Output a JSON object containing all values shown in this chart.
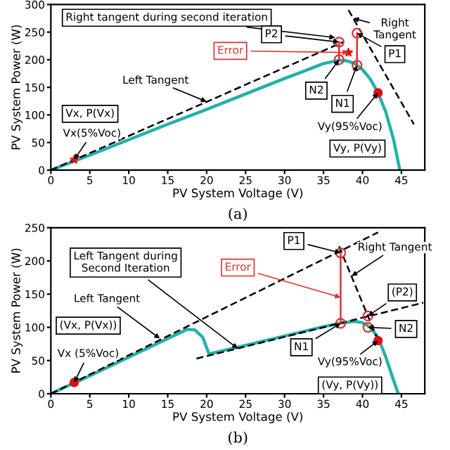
{
  "chart_data": [
    {
      "type": "line",
      "xlabel": "PV System Voltage (V)",
      "ylabel": "PV System Power (W)",
      "xlim": [
        0,
        48
      ],
      "ylim": [
        0,
        300
      ],
      "xticks": [
        0,
        5,
        10,
        15,
        20,
        25,
        30,
        35,
        40,
        45
      ],
      "yticks": [
        0,
        50,
        100,
        150,
        200,
        250,
        300
      ],
      "legend": false,
      "grid": false,
      "series": [
        {
          "type": "line",
          "color": "#20b2aa",
          "line_style": "solid",
          "x": [
            0,
            5,
            10,
            15,
            20,
            25,
            30,
            33,
            35,
            37,
            38,
            39,
            40,
            41,
            42,
            43,
            44,
            44.8
          ],
          "values": [
            0,
            27,
            55,
            83,
            110,
            138,
            166,
            182,
            193,
            199,
            198,
            193,
            182,
            165,
            140,
            105,
            55,
            0
          ]
        },
        {
          "type": "line",
          "color": "#000000",
          "line_style": "dashed",
          "x": [
            0,
            37.5
          ],
          "values": [
            0,
            232
          ]
        },
        {
          "type": "line",
          "color": "#000000",
          "line_style": "dashed",
          "x": [
            38.2,
            46.6
          ],
          "values": [
            290,
            83
          ]
        },
        {
          "type": "line",
          "color": "#e03030",
          "line_style": "solid",
          "x": [
            37,
            37
          ],
          "values": [
            232,
            200
          ]
        },
        {
          "type": "line",
          "color": "#e03030",
          "line_style": "solid",
          "x": [
            39.3,
            39.3
          ],
          "values": [
            248,
            190
          ]
        },
        {
          "type": "scatter",
          "color": "#e03030",
          "marker": "circle",
          "x": [
            37,
            39.3,
            37,
            39.3
          ],
          "values": [
            232,
            248,
            200,
            190
          ]
        },
        {
          "type": "scatter",
          "color": "#e01010",
          "marker": "star",
          "x": [
            3,
            38.2
          ],
          "values": [
            19,
            213
          ]
        },
        {
          "type": "scatter",
          "color": "#e01010",
          "marker": "circle",
          "x": [
            42
          ],
          "values": [
            140
          ]
        }
      ],
      "annotations": [
        {
          "text": "Right tangent during second iteration",
          "x": 36.5,
          "y": 240
        },
        {
          "text": "P2",
          "x": 37,
          "y": 232
        },
        {
          "text": "Right\nTangent",
          "x": 38.8,
          "y": 275
        },
        {
          "text": "P1",
          "x": 39.3,
          "y": 248
        },
        {
          "text": "Error",
          "x": 38.2,
          "y": 213
        },
        {
          "text": "N2",
          "x": 37,
          "y": 200
        },
        {
          "text": "N1",
          "x": 39.3,
          "y": 190
        },
        {
          "text": "Left Tangent",
          "x": 20,
          "y": 124
        },
        "Vx, P(Vx)",
        {
          "text": "Vx(5%Voc)",
          "x": 3,
          "y": 19
        },
        {
          "text": "Vy(95%Voc)",
          "x": 42,
          "y": 140
        },
        "Vy, P(Vy)",
        "(a)"
      ]
    },
    {
      "type": "line",
      "xlabel": "PV System Voltage (V)",
      "ylabel": "PV System Power (W)",
      "xlim": [
        0,
        48
      ],
      "ylim": [
        0,
        250
      ],
      "xticks": [
        0,
        5,
        10,
        15,
        20,
        25,
        30,
        35,
        40,
        45
      ],
      "yticks": [
        0,
        50,
        100,
        150,
        200,
        250
      ],
      "legend": false,
      "grid": false,
      "series": [
        {
          "type": "line",
          "color": "#20b2aa",
          "line_style": "solid",
          "x": [
            0,
            5,
            10,
            15,
            17.5,
            18.5,
            19.5,
            20.3,
            25,
            30,
            35,
            37,
            39,
            40,
            41,
            42,
            43,
            44,
            44.6
          ],
          "values": [
            0,
            27,
            55,
            83,
            97,
            96,
            85,
            60,
            73,
            87,
            101,
            106,
            109,
            107,
            100,
            85,
            55,
            20,
            0
          ]
        },
        {
          "type": "line",
          "color": "#000000",
          "line_style": "dashed",
          "x": [
            0,
            42
          ],
          "values": [
            0,
            243
          ]
        },
        {
          "type": "line",
          "color": "#000000",
          "line_style": "dashed",
          "x": [
            18.7,
            47.8
          ],
          "values": [
            53,
            137
          ]
        },
        {
          "type": "line",
          "color": "#000000",
          "line_style": "dashed",
          "x": [
            37,
            42
          ],
          "values": [
            222,
            80
          ]
        },
        {
          "type": "line",
          "color": "#e03030",
          "line_style": "solid",
          "x": [
            37.2,
            37.2
          ],
          "values": [
            212,
            106
          ]
        },
        {
          "type": "scatter",
          "color": "#e03030",
          "marker": "circle",
          "x": [
            37.2,
            40.7,
            37.2,
            40.7
          ],
          "values": [
            212,
            117,
            106,
            100
          ]
        },
        {
          "type": "scatter",
          "color": "#e01010",
          "marker": "circle",
          "x": [
            3,
            42
          ],
          "values": [
            17,
            80
          ]
        }
      ],
      "annotations": [
        {
          "text": "P1",
          "x": 37.2,
          "y": 212
        },
        {
          "text": "Right Tangent",
          "x": 38.6,
          "y": 177
        },
        {
          "text": "Left Tangent during\nSecond Iteration",
          "x": 24,
          "y": 68
        },
        {
          "text": "Error",
          "x": 37.2,
          "y": 145
        },
        {
          "text": "Left Tangent",
          "x": 14,
          "y": 83
        },
        {
          "text": "(P2)",
          "x": 40.7,
          "y": 117
        },
        {
          "text": "N2",
          "x": 40.7,
          "y": 100
        },
        {
          "text": "N1",
          "x": 37.2,
          "y": 106
        },
        "(Vx, P(Vx))",
        {
          "text": "Vx (5%Voc)",
          "x": 3,
          "y": 17
        },
        {
          "text": "Vy(95%Voc)",
          "x": 42,
          "y": 80
        },
        "(Vy, P(Vy))",
        "(b)"
      ]
    }
  ]
}
